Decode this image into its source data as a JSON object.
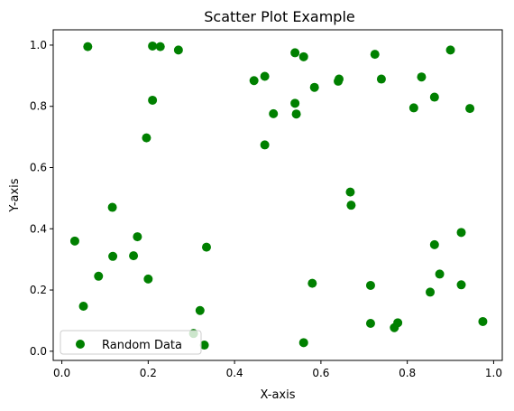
{
  "chart_data": {
    "type": "scatter",
    "title": "Scatter Plot Example",
    "xlabel": "X-axis",
    "ylabel": "Y-axis",
    "xlim": [
      -0.02,
      1.02
    ],
    "ylim": [
      -0.03,
      1.05
    ],
    "xticks": [
      0.0,
      0.2,
      0.4,
      0.6,
      0.8,
      1.0
    ],
    "yticks": [
      0.0,
      0.2,
      0.4,
      0.6,
      0.8,
      1.0
    ],
    "xtick_labels": [
      "0.0",
      "0.2",
      "0.4",
      "0.6",
      "0.8",
      "1.0"
    ],
    "ytick_labels": [
      "0.0",
      "0.2",
      "0.4",
      "0.6",
      "0.8",
      "1.0"
    ],
    "grid": false,
    "legend": {
      "position": "lower-left",
      "entries": [
        "Random Data"
      ]
    },
    "series": [
      {
        "name": "Random Data",
        "color": "#008000",
        "points": [
          [
            0.06,
            0.995
          ],
          [
            0.21,
            0.997
          ],
          [
            0.228,
            0.995
          ],
          [
            0.27,
            0.984
          ],
          [
            0.21,
            0.82
          ],
          [
            0.196,
            0.697
          ],
          [
            0.117,
            0.47
          ],
          [
            0.03,
            0.36
          ],
          [
            0.175,
            0.374
          ],
          [
            0.166,
            0.312
          ],
          [
            0.118,
            0.31
          ],
          [
            0.085,
            0.245
          ],
          [
            0.2,
            0.236
          ],
          [
            0.335,
            0.34
          ],
          [
            0.05,
            0.147
          ],
          [
            0.32,
            0.133
          ],
          [
            0.305,
            0.058
          ],
          [
            0.33,
            0.02
          ],
          [
            0.445,
            0.884
          ],
          [
            0.47,
            0.898
          ],
          [
            0.49,
            0.776
          ],
          [
            0.47,
            0.674
          ],
          [
            0.54,
            0.975
          ],
          [
            0.56,
            0.962
          ],
          [
            0.54,
            0.81
          ],
          [
            0.543,
            0.775
          ],
          [
            0.585,
            0.862
          ],
          [
            0.64,
            0.882
          ],
          [
            0.642,
            0.889
          ],
          [
            0.725,
            0.97
          ],
          [
            0.74,
            0.889
          ],
          [
            0.668,
            0.52
          ],
          [
            0.67,
            0.477
          ],
          [
            0.58,
            0.222
          ],
          [
            0.56,
            0.028
          ],
          [
            0.715,
            0.215
          ],
          [
            0.715,
            0.091
          ],
          [
            0.77,
            0.077
          ],
          [
            0.778,
            0.093
          ],
          [
            0.833,
            0.896
          ],
          [
            0.9,
            0.984
          ],
          [
            0.863,
            0.83
          ],
          [
            0.815,
            0.795
          ],
          [
            0.945,
            0.793
          ],
          [
            0.925,
            0.388
          ],
          [
            0.863,
            0.348
          ],
          [
            0.875,
            0.252
          ],
          [
            0.853,
            0.193
          ],
          [
            0.925,
            0.217
          ],
          [
            0.975,
            0.097
          ]
        ]
      }
    ]
  }
}
